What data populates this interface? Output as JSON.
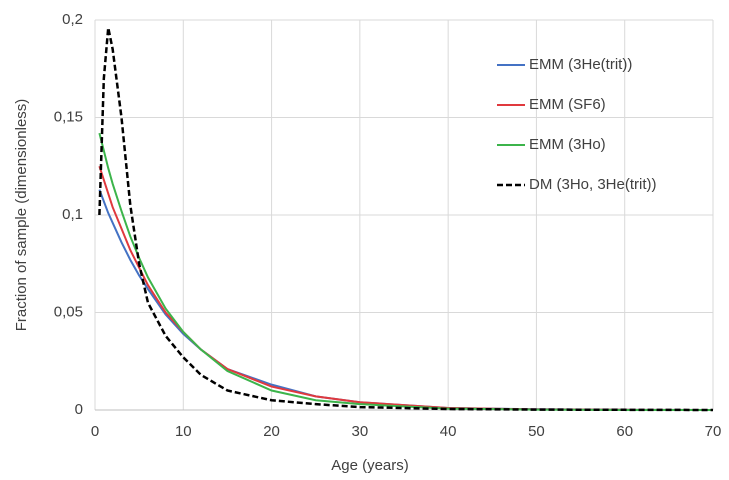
{
  "chart_data": {
    "type": "line",
    "x_label": "Age (years)",
    "y_label": "Fraction of sample (dimensionless)",
    "x": [
      0.5,
      1,
      1.5,
      2,
      3,
      4,
      5,
      6,
      8,
      10,
      12,
      15,
      20,
      25,
      30,
      40,
      50,
      60,
      70
    ],
    "series": [
      {
        "name": "EMM (3He(trit))",
        "color": "#4472c4",
        "dash": false,
        "values": [
          0.113,
          0.107,
          0.101,
          0.096,
          0.086,
          0.077,
          0.069,
          0.062,
          0.049,
          0.039,
          0.031,
          0.021,
          0.013,
          0.007,
          0.004,
          0.001,
          0.0004,
          0.0001,
          0
        ]
      },
      {
        "name": "EMM (SF6)",
        "color": "#e0393e",
        "dash": false,
        "values": [
          0.125,
          0.118,
          0.111,
          0.104,
          0.093,
          0.082,
          0.073,
          0.064,
          0.05,
          0.04,
          0.031,
          0.021,
          0.012,
          0.007,
          0.004,
          0.001,
          0.0003,
          0.0001,
          0
        ]
      },
      {
        "name": "EMM (3Ho)",
        "color": "#3cb44b",
        "dash": false,
        "values": [
          0.142,
          0.133,
          0.124,
          0.116,
          0.102,
          0.089,
          0.078,
          0.068,
          0.052,
          0.04,
          0.031,
          0.02,
          0.01,
          0.005,
          0.003,
          0.0007,
          0.0002,
          0,
          0
        ]
      },
      {
        "name": "DM (3Ho, 3He(trit))",
        "color": "#000000",
        "dash": true,
        "values": [
          0.1,
          0.17,
          0.196,
          0.185,
          0.15,
          0.105,
          0.075,
          0.055,
          0.038,
          0.027,
          0.018,
          0.01,
          0.005,
          0.003,
          0.0015,
          0.0005,
          0.0002,
          0.0001,
          0
        ]
      }
    ],
    "xlim": [
      0,
      70
    ],
    "xticks": [
      0,
      10,
      20,
      30,
      40,
      50,
      60,
      70
    ],
    "ylim": [
      0,
      0.2
    ],
    "yticks": [
      0,
      {
        "value": 0.05,
        "label": "0,05"
      },
      {
        "value": 0.1,
        "label": "0,1"
      },
      {
        "value": 0.15,
        "label": "0,15"
      },
      {
        "value": 0.2,
        "label": "0,2"
      }
    ],
    "grid": true,
    "legend": "upper right"
  }
}
